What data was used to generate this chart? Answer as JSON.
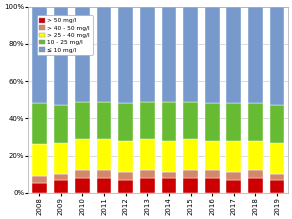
{
  "years": [
    "2008",
    "2009",
    "2010",
    "2011",
    "2012",
    "2013",
    "2014",
    "2015",
    "2016",
    "2017",
    "2018",
    "2019"
  ],
  "classes": {
    "gt50": [
      5,
      7,
      8,
      8,
      7,
      8,
      8,
      8,
      8,
      7,
      8,
      7
    ],
    "40to50": [
      4,
      3,
      4,
      4,
      4,
      4,
      3,
      4,
      4,
      4,
      4,
      3
    ],
    "25to40": [
      17,
      17,
      17,
      17,
      17,
      17,
      17,
      17,
      16,
      17,
      16,
      17
    ],
    "10to25": [
      22,
      20,
      20,
      20,
      20,
      20,
      21,
      20,
      20,
      20,
      20,
      20
    ],
    "lt10": [
      52,
      53,
      51,
      51,
      52,
      51,
      51,
      51,
      52,
      52,
      52,
      53
    ]
  },
  "colors": {
    "gt50": "#cc0000",
    "40to50": "#d4886a",
    "25to40": "#ffff00",
    "10to25": "#66bb33",
    "lt10": "#7799cc"
  },
  "labels": {
    "gt50": "> 50 mg/l",
    "40to50": "> 40 - 50 mg/l",
    "25to40": "> 25 - 40 mg/l",
    "10to25": "10 - 25 mg/l",
    "lt10": "≤ 10 mg/l"
  },
  "ylim": [
    0,
    100
  ],
  "background_color": "#ffffff",
  "grid_color": "#cccccc"
}
